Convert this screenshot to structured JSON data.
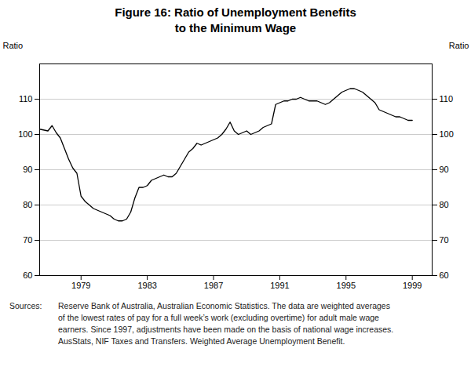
{
  "chart_data": {
    "type": "line",
    "title": "Figure 16: Ratio of Unemployment Benefits\nto the Minimum Wage",
    "ylabel": "Ratio",
    "y2label": "Ratio",
    "annotations": [
      "Sources:",
      "Reserve Bank of Australia, Australian Economic Statistics. The data are weighted averages",
      "of the lowest rates of pay for a full week’s work (excluding overtime) for adult male wage",
      "earners. Since 1997, adjustments have been made on the basis of national wage increases.",
      "AusStats, NIF Taxes and Transfers. Weighted Average Unemployment Benefit."
    ],
    "color": "#000000",
    "xlim": [
      1976.5,
      2000.2
    ],
    "xticks": [
      1979,
      1983,
      1987,
      1991,
      1995,
      1999
    ],
    "ylim": [
      60,
      120
    ],
    "yticks": [
      60,
      70,
      80,
      90,
      100,
      110
    ],
    "y2lim": [
      60,
      120
    ],
    "y2ticks": [
      60,
      70,
      80,
      90,
      100,
      110
    ],
    "grid": true,
    "x": [
      1976.5,
      1977.0,
      1977.25,
      1977.5,
      1977.75,
      1978.0,
      1978.25,
      1978.5,
      1978.75,
      1979.0,
      1979.25,
      1979.5,
      1979.75,
      1980.0,
      1980.25,
      1980.5,
      1980.75,
      1981.0,
      1981.25,
      1981.5,
      1981.75,
      1982.0,
      1982.25,
      1982.5,
      1982.75,
      1983.0,
      1983.25,
      1983.5,
      1983.75,
      1984.0,
      1984.25,
      1984.5,
      1984.75,
      1985.0,
      1985.25,
      1985.5,
      1985.75,
      1986.0,
      1986.25,
      1986.5,
      1986.75,
      1987.0,
      1987.25,
      1987.5,
      1987.75,
      1988.0,
      1988.25,
      1988.5,
      1988.75,
      1989.0,
      1989.25,
      1989.5,
      1989.75,
      1990.0,
      1990.25,
      1990.5,
      1990.75,
      1991.0,
      1991.25,
      1991.5,
      1991.75,
      1992.0,
      1992.25,
      1992.5,
      1992.75,
      1993.0,
      1993.25,
      1993.5,
      1993.75,
      1994.0,
      1994.25,
      1994.5,
      1994.75,
      1995.0,
      1995.25,
      1995.5,
      1995.75,
      1996.0,
      1996.25,
      1996.5,
      1996.75,
      1997.0,
      1997.25,
      1997.5,
      1997.75,
      1998.0,
      1998.25,
      1998.5,
      1998.75,
      1999.0
    ],
    "values": [
      101.5,
      101.0,
      102.5,
      100.5,
      99.0,
      96.0,
      93.0,
      90.5,
      89.0,
      82.5,
      81.0,
      80.0,
      79.0,
      78.5,
      78.0,
      77.5,
      77.0,
      76.0,
      75.5,
      75.5,
      76.0,
      78.0,
      82.0,
      85.0,
      85.0,
      85.5,
      87.0,
      87.5,
      88.0,
      88.5,
      88.0,
      88.0,
      89.0,
      91.0,
      93.0,
      95.0,
      96.0,
      97.5,
      97.0,
      97.5,
      98.0,
      98.5,
      99.0,
      100.0,
      101.5,
      103.5,
      101.0,
      100.0,
      100.5,
      101.0,
      100.0,
      100.5,
      101.0,
      102.0,
      102.5,
      103.0,
      108.5,
      109.0,
      109.5,
      109.5,
      110.0,
      110.0,
      110.5,
      110.0,
      109.5,
      109.5,
      109.5,
      109.0,
      108.5,
      109.0,
      110.0,
      111.0,
      112.0,
      112.5,
      113.0,
      113.0,
      112.5,
      112.0,
      111.0,
      110.0,
      109.0,
      107.0,
      106.5,
      106.0,
      105.5,
      105.0,
      105.0,
      104.5,
      104.0,
      104.0
    ]
  }
}
